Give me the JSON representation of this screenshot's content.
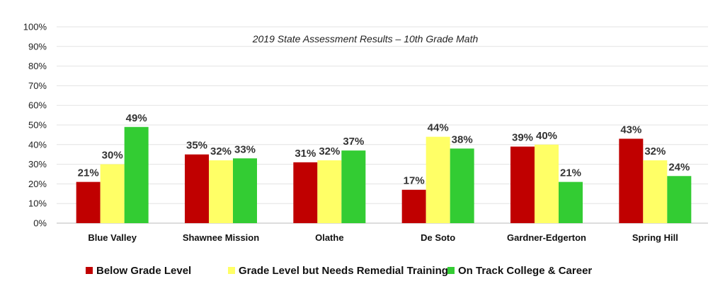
{
  "chart_data": {
    "type": "bar",
    "title": "2019 State Assessment Results – 10th Grade Math",
    "xlabel": "",
    "ylabel": "",
    "ylim": [
      0,
      100
    ],
    "y_ticks": [
      "0%",
      "10%",
      "20%",
      "30%",
      "40%",
      "50%",
      "60%",
      "70%",
      "80%",
      "90%",
      "100%"
    ],
    "grid": true,
    "legend_position": "bottom",
    "categories": [
      "Blue Valley",
      "Shawnee Mission",
      "Olathe",
      "De Soto",
      "Gardner-Edgerton",
      "Spring Hill"
    ],
    "series": [
      {
        "name": "Below Grade Level",
        "color": "#c00000",
        "values": [
          21,
          35,
          31,
          17,
          39,
          43
        ],
        "labels": [
          "21%",
          "35%",
          "31%",
          "17%",
          "39%",
          "43%"
        ]
      },
      {
        "name": "Grade Level but Needs Remedial Training",
        "color": "#ffff66",
        "values": [
          30,
          32,
          32,
          44,
          40,
          32
        ],
        "labels": [
          "30%",
          "32%",
          "32%",
          "44%",
          "40%",
          "32%"
        ]
      },
      {
        "name": "On Track College & Career",
        "color": "#33cc33",
        "values": [
          49,
          33,
          37,
          38,
          21,
          24
        ],
        "labels": [
          "49%",
          "33%",
          "37%",
          "38%",
          "21%",
          "24%"
        ]
      }
    ]
  }
}
